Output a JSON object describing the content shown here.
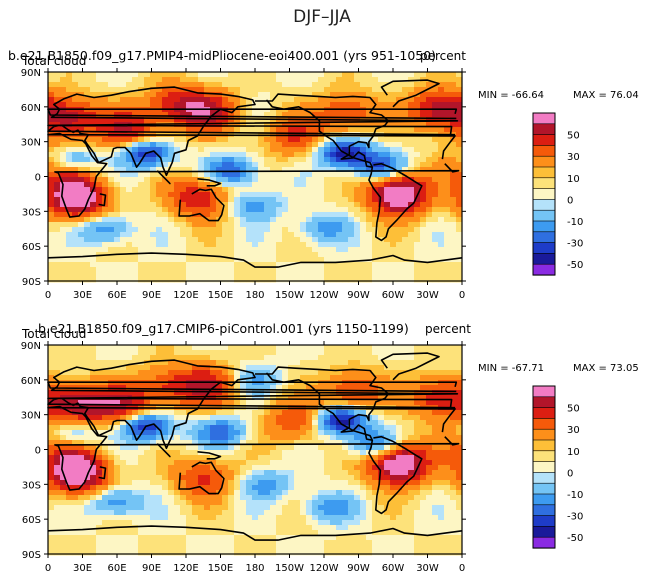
{
  "figure": {
    "title": "DJF–JJA"
  },
  "colors": {
    "bins": [
      "#8a2be2",
      "#1a1a9a",
      "#1e3cc8",
      "#2f6fe0",
      "#3d9bf0",
      "#74c4f5",
      "#b4e2fa",
      "#fdf6c4",
      "#fde27a",
      "#fdbf38",
      "#fd8f1a",
      "#f55a0a",
      "#dc1e12",
      "#b2152a",
      "#f27cc4"
    ],
    "coast": "#000000"
  },
  "chart_data": [
    {
      "type": "heatmap",
      "case": "b.e21.B1850.f09_g17.PMIP4-midPliocene-eoi400.001  (yrs 951-1050)",
      "variable": "Total cloud",
      "units": "percent",
      "min_label": "MIN = -66.64",
      "max_label": "MAX =  76.04",
      "min": -66.64,
      "max": 76.04,
      "y_tick_labels": [
        "90N",
        "60N",
        "30N",
        "0",
        "30S",
        "60S",
        "90S"
      ],
      "x_tick_labels": [
        "0",
        "30E",
        "60E",
        "90E",
        "120E",
        "150E",
        "180",
        "150W",
        "120W",
        "90W",
        "60W",
        "30W",
        "0"
      ],
      "x_range_deg": [
        0,
        360
      ],
      "y_range_deg": [
        -90,
        90
      ],
      "colorbar_labels": [
        "50",
        "30",
        "10",
        "0",
        "-10",
        "-30",
        "-50"
      ],
      "contour_levels": [
        -70,
        -50,
        -40,
        -30,
        -20,
        -10,
        -5,
        0,
        5,
        10,
        20,
        30,
        40,
        50,
        70
      ],
      "fields": {
        "hotspots": [
          {
            "lon": 25,
            "lat": -18,
            "value": 70
          },
          {
            "lon": 305,
            "lat": -15,
            "value": 72
          },
          {
            "lon": 20,
            "lat": 50,
            "value": 45
          },
          {
            "lon": 70,
            "lat": 40,
            "value": 40
          },
          {
            "lon": 140,
            "lat": 55,
            "value": 40
          },
          {
            "lon": 340,
            "lat": 58,
            "value": 48
          },
          {
            "lon": 260,
            "lat": 55,
            "value": 32
          },
          {
            "lon": 110,
            "lat": 62,
            "value": 35
          },
          {
            "lon": 215,
            "lat": 35,
            "value": 30
          },
          {
            "lon": 130,
            "lat": -18,
            "value": 40
          },
          {
            "lon": 10,
            "lat": 10,
            "value": 28
          }
        ],
        "coldspots": [
          {
            "lon": 85,
            "lat": 20,
            "value": -55
          },
          {
            "lon": 258,
            "lat": 20,
            "value": -58
          },
          {
            "lon": 160,
            "lat": 5,
            "value": -40
          },
          {
            "lon": 20,
            "lat": 14,
            "value": -40
          },
          {
            "lon": 290,
            "lat": 8,
            "value": -42
          },
          {
            "lon": 50,
            "lat": -45,
            "value": -30
          },
          {
            "lon": 180,
            "lat": -25,
            "value": -25
          },
          {
            "lon": 240,
            "lat": -45,
            "value": -25
          }
        ]
      }
    },
    {
      "type": "heatmap",
      "case": "b.e21.B1850.f09_g17.CMIP6-piControl.001  (yrs 1150-1199)",
      "variable": "Total cloud",
      "units": "percent",
      "min_label": "MIN = -67.71",
      "max_label": "MAX =  73.05",
      "min": -67.71,
      "max": 73.05,
      "y_tick_labels": [
        "90N",
        "60N",
        "30N",
        "0",
        "30S",
        "60S",
        "90S"
      ],
      "x_tick_labels": [
        "0",
        "30E",
        "60E",
        "90E",
        "120E",
        "150E",
        "180",
        "150W",
        "120W",
        "90W",
        "60W",
        "30W",
        "0"
      ],
      "x_range_deg": [
        0,
        360
      ],
      "y_range_deg": [
        -90,
        90
      ],
      "colorbar_labels": [
        "50",
        "30",
        "10",
        "0",
        "-10",
        "-30",
        "-50"
      ],
      "contour_levels": [
        -70,
        -50,
        -40,
        -30,
        -20,
        -10,
        -5,
        0,
        5,
        10,
        20,
        30,
        40,
        50,
        70
      ],
      "fields": {
        "hotspots": [
          {
            "lon": 25,
            "lat": -20,
            "value": 70
          },
          {
            "lon": 305,
            "lat": -12,
            "value": 70
          },
          {
            "lon": 25,
            "lat": 40,
            "value": 48
          },
          {
            "lon": 65,
            "lat": 38,
            "value": 40
          },
          {
            "lon": 140,
            "lat": 55,
            "value": 35
          },
          {
            "lon": 340,
            "lat": 45,
            "value": 40
          },
          {
            "lon": 265,
            "lat": 50,
            "value": 35
          },
          {
            "lon": 105,
            "lat": 55,
            "value": 30
          },
          {
            "lon": 215,
            "lat": 25,
            "value": 30
          },
          {
            "lon": 135,
            "lat": -25,
            "value": 32
          },
          {
            "lon": 10,
            "lat": 5,
            "value": 25
          }
        ],
        "coldspots": [
          {
            "lon": 85,
            "lat": 20,
            "value": -55
          },
          {
            "lon": 255,
            "lat": 25,
            "value": -60
          },
          {
            "lon": 150,
            "lat": 15,
            "value": -35
          },
          {
            "lon": 20,
            "lat": 12,
            "value": -35
          },
          {
            "lon": 285,
            "lat": 5,
            "value": -40
          },
          {
            "lon": 60,
            "lat": -45,
            "value": -30
          },
          {
            "lon": 190,
            "lat": -30,
            "value": -25
          },
          {
            "lon": 245,
            "lat": -50,
            "value": -25
          },
          {
            "lon": 180,
            "lat": 60,
            "value": -20
          }
        ]
      }
    }
  ]
}
